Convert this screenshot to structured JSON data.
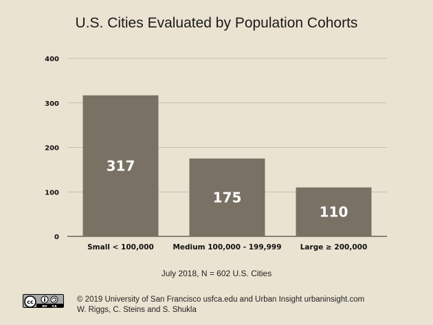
{
  "chart_data": {
    "type": "bar",
    "title": "U.S. Cities Evaluated by Population Cohorts",
    "categories": [
      "Small < 100,000",
      "Medium 100,000 - 199,999",
      "Large ≥ 200,000"
    ],
    "values": [
      317,
      175,
      110
    ],
    "data_labels": [
      "317",
      "175",
      "110"
    ],
    "yticks": [
      0,
      100,
      200,
      300,
      400
    ],
    "ylim": [
      0,
      400
    ],
    "grid": true,
    "xlabel": "",
    "ylabel": "",
    "bar_color": "#7a7165",
    "grid_color": "#b9b3a3"
  },
  "subtitle": "July 2018, N = 602 U.S. Cities",
  "footer": {
    "line1": "© 2019 University of San Francisco usfca.edu and Urban Insight urbaninsight.com",
    "line2": "W. Riggs, C. Steins and S. Shukla"
  },
  "license": {
    "icon": "cc-by-sa-icon",
    "cc_text": "cc",
    "by_text": "BY",
    "sa_text": "SA"
  }
}
